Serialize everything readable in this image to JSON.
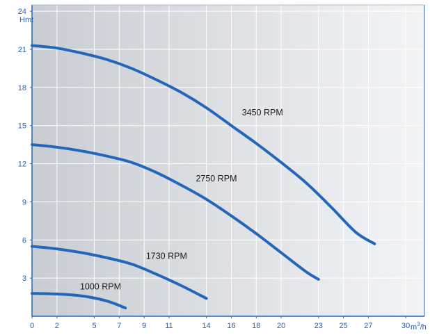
{
  "chart_data": {
    "type": "line",
    "ylabel": "Hmt",
    "xlabel_base": "m",
    "xlabel_sup": "3",
    "xlabel_tail": "/h",
    "xlim": [
      0,
      31.5
    ],
    "ylim": [
      0,
      24.5
    ],
    "x_ticks": [
      {
        "value": 0,
        "label": "0"
      },
      {
        "value": 2,
        "label": "2"
      },
      {
        "value": 5,
        "label": "5"
      },
      {
        "value": 7,
        "label": "7"
      },
      {
        "value": 9,
        "label": "9"
      },
      {
        "value": 11,
        "label": "11"
      },
      {
        "value": 14,
        "label": "14"
      },
      {
        "value": 16,
        "label": "16"
      },
      {
        "value": 18,
        "label": "18"
      },
      {
        "value": 20,
        "label": "20"
      },
      {
        "value": 23,
        "label": "23"
      },
      {
        "value": 25,
        "label": "25"
      },
      {
        "value": 27,
        "label": "27"
      },
      {
        "value": 30,
        "label": "30"
      }
    ],
    "y_ticks": [
      {
        "value": 3,
        "label": "3"
      },
      {
        "value": 6,
        "label": "6"
      },
      {
        "value": 9,
        "label": "9"
      },
      {
        "value": 12,
        "label": "12"
      },
      {
        "value": 15,
        "label": "15"
      },
      {
        "value": 18,
        "label": "18"
      },
      {
        "value": 21,
        "label": "21"
      },
      {
        "value": 24,
        "label": "24"
      }
    ],
    "grid": true,
    "series": [
      {
        "name": "3450 RPM",
        "label_at": [
          18.5,
          15.8
        ],
        "points": [
          [
            0,
            21.3
          ],
          [
            2,
            21.1
          ],
          [
            4,
            20.7
          ],
          [
            6,
            20.2
          ],
          [
            8,
            19.5
          ],
          [
            10,
            18.6
          ],
          [
            12,
            17.6
          ],
          [
            14,
            16.4
          ],
          [
            16,
            15.0
          ],
          [
            18,
            13.6
          ],
          [
            20,
            12.1
          ],
          [
            22,
            10.5
          ],
          [
            24,
            8.6
          ],
          [
            26,
            6.6
          ],
          [
            27.5,
            5.7
          ]
        ]
      },
      {
        "name": "2750 RPM",
        "label_at": [
          14.8,
          10.6
        ],
        "points": [
          [
            0,
            13.5
          ],
          [
            2,
            13.3
          ],
          [
            4,
            13.0
          ],
          [
            6,
            12.6
          ],
          [
            8,
            12.1
          ],
          [
            10,
            11.3
          ],
          [
            12,
            10.3
          ],
          [
            14,
            9.2
          ],
          [
            16,
            7.9
          ],
          [
            18,
            6.5
          ],
          [
            20,
            5.0
          ],
          [
            22,
            3.5
          ],
          [
            23,
            2.9
          ]
        ]
      },
      {
        "name": "1730 RPM",
        "label_at": [
          10.8,
          4.5
        ],
        "points": [
          [
            0,
            5.5
          ],
          [
            2,
            5.3
          ],
          [
            4,
            5.0
          ],
          [
            6,
            4.6
          ],
          [
            8,
            4.1
          ],
          [
            10,
            3.3
          ],
          [
            12,
            2.4
          ],
          [
            14,
            1.4
          ]
        ]
      },
      {
        "name": "1000 RPM",
        "label_at": [
          5.5,
          2.1
        ],
        "points": [
          [
            0,
            1.8
          ],
          [
            2,
            1.75
          ],
          [
            4,
            1.6
          ],
          [
            6,
            1.2
          ],
          [
            7.5,
            0.65
          ]
        ]
      }
    ],
    "colors": {
      "line": "#2467b8",
      "grid": "#ffffff",
      "tick_text": "#2a63b0",
      "plot_bg_left": "#c9ccd2",
      "plot_bg_right": "#f3f4f6",
      "axis": "#2467b8"
    }
  }
}
